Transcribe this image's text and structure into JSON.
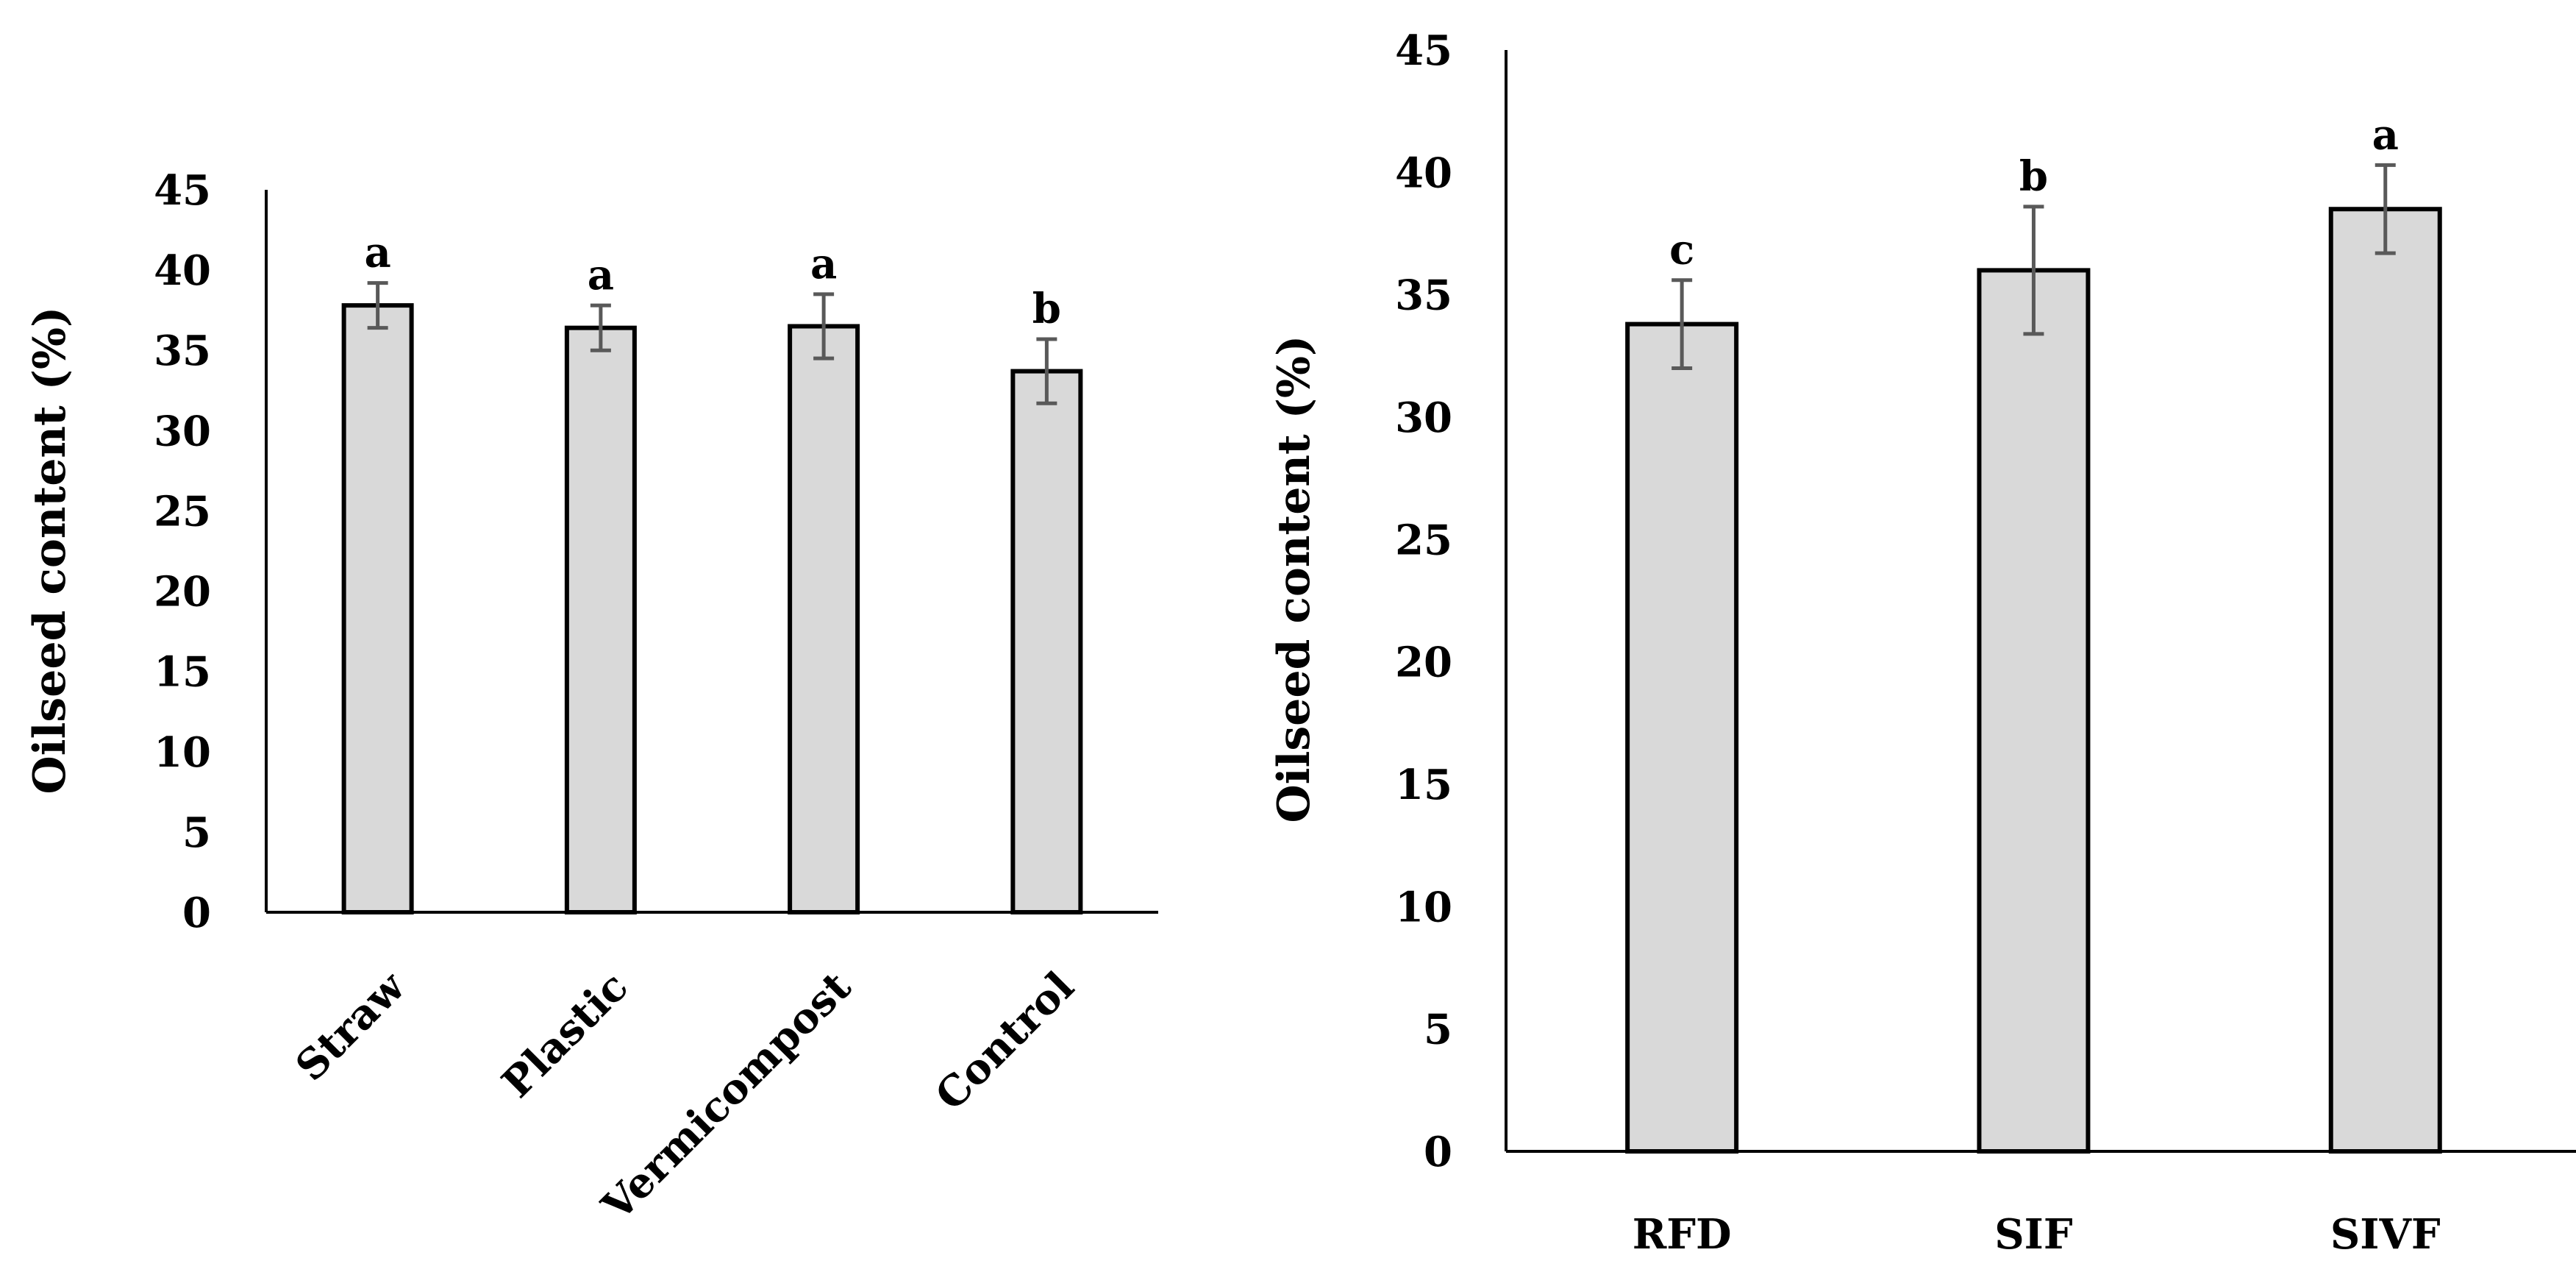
{
  "chart_data": [
    {
      "type": "bar",
      "title": "",
      "xlabel": "",
      "ylabel": "Oilseed content (%)",
      "ylim": [
        0,
        45
      ],
      "yticks": [
        0,
        5,
        10,
        15,
        20,
        25,
        30,
        35,
        40,
        45
      ],
      "grid": false,
      "categories": [
        "Straw",
        "Plastic",
        "Vermicompost",
        "Control"
      ],
      "values": [
        37.8,
        36.4,
        36.5,
        33.7
      ],
      "errors": [
        1.4,
        1.4,
        2.0,
        2.0
      ],
      "significance": [
        "a",
        "a",
        "a",
        "b"
      ],
      "category_label_rotation_deg": -45
    },
    {
      "type": "bar",
      "title": "",
      "xlabel": "",
      "ylabel": "Oilseed content (%)",
      "ylim": [
        0,
        45
      ],
      "yticks": [
        0,
        5,
        10,
        15,
        20,
        25,
        30,
        35,
        40,
        45
      ],
      "grid": false,
      "categories": [
        "RFD",
        "SIF",
        "SIVF"
      ],
      "values": [
        33.8,
        36.0,
        38.5
      ],
      "errors": [
        1.8,
        2.6,
        1.8
      ],
      "significance": [
        "c",
        "b",
        "a"
      ],
      "category_label_rotation_deg": 0
    }
  ]
}
